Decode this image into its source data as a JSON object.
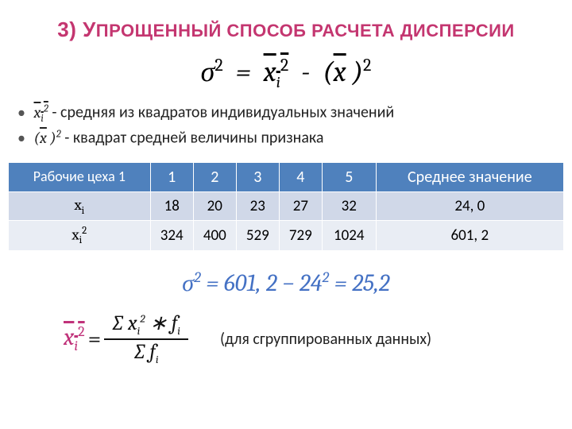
{
  "title_parts": {
    "p1": "3) У",
    "p2": "ПРОЩЕННЫЙ СПОСОБ РАСЧЕТА ДИСПЕРСИИ"
  },
  "main_formula": {
    "lhs_base": "σ",
    "lhs_sup": "2",
    "rhs1_bar": "x",
    "rhs1_sub": "i",
    "rhs1_sup": "2",
    "rhs2_bar": "x",
    "rhs2_sup": "2"
  },
  "bullet1": {
    "sym": "x",
    "sub": "i",
    "sup": "2",
    "text": " - средняя из квадратов индивидуальных значений"
  },
  "bullet2": {
    "sym": "x",
    "sup": "2",
    "text": " - квадрат средней величины признака"
  },
  "table": {
    "headers": [
      "Рабочие цеха 1",
      "1",
      "2",
      "3",
      "4",
      "5",
      "Среднее значение"
    ],
    "row_labels": {
      "r1": "x",
      "r1_sub": "i",
      "r2": "x",
      "r2_sub": "i",
      "r2_sup": "2"
    },
    "row1": [
      "18",
      "20",
      "23",
      "27",
      "32",
      "24, 0"
    ],
    "row2": [
      "324",
      "400",
      "529",
      "729",
      "1024",
      "601, 2"
    ]
  },
  "calc": {
    "text_a": "σ",
    "sup_a": "2",
    "eq": " = 601, 2 − 24",
    "sup_b": "2",
    "tail": " = 25,2"
  },
  "bottom_formula": {
    "lhs_bar": "x",
    "lhs_sub": "i",
    "lhs_sup": "2",
    "num": "∑  x",
    "num_sub": "i",
    "num_sup": "2",
    "num_mid": "  ∗   f",
    "num_sub2": "i",
    "den": "∑  f",
    "den_sub": "i"
  },
  "note": "(для сгруппированных данных)",
  "colors": {
    "title": "#c43670",
    "th_bg": "#4f81bd",
    "td_bg1": "#d0d8e8",
    "td_bg2": "#e9edf4",
    "calc": "#4471c4",
    "formula": "#c0327a"
  }
}
